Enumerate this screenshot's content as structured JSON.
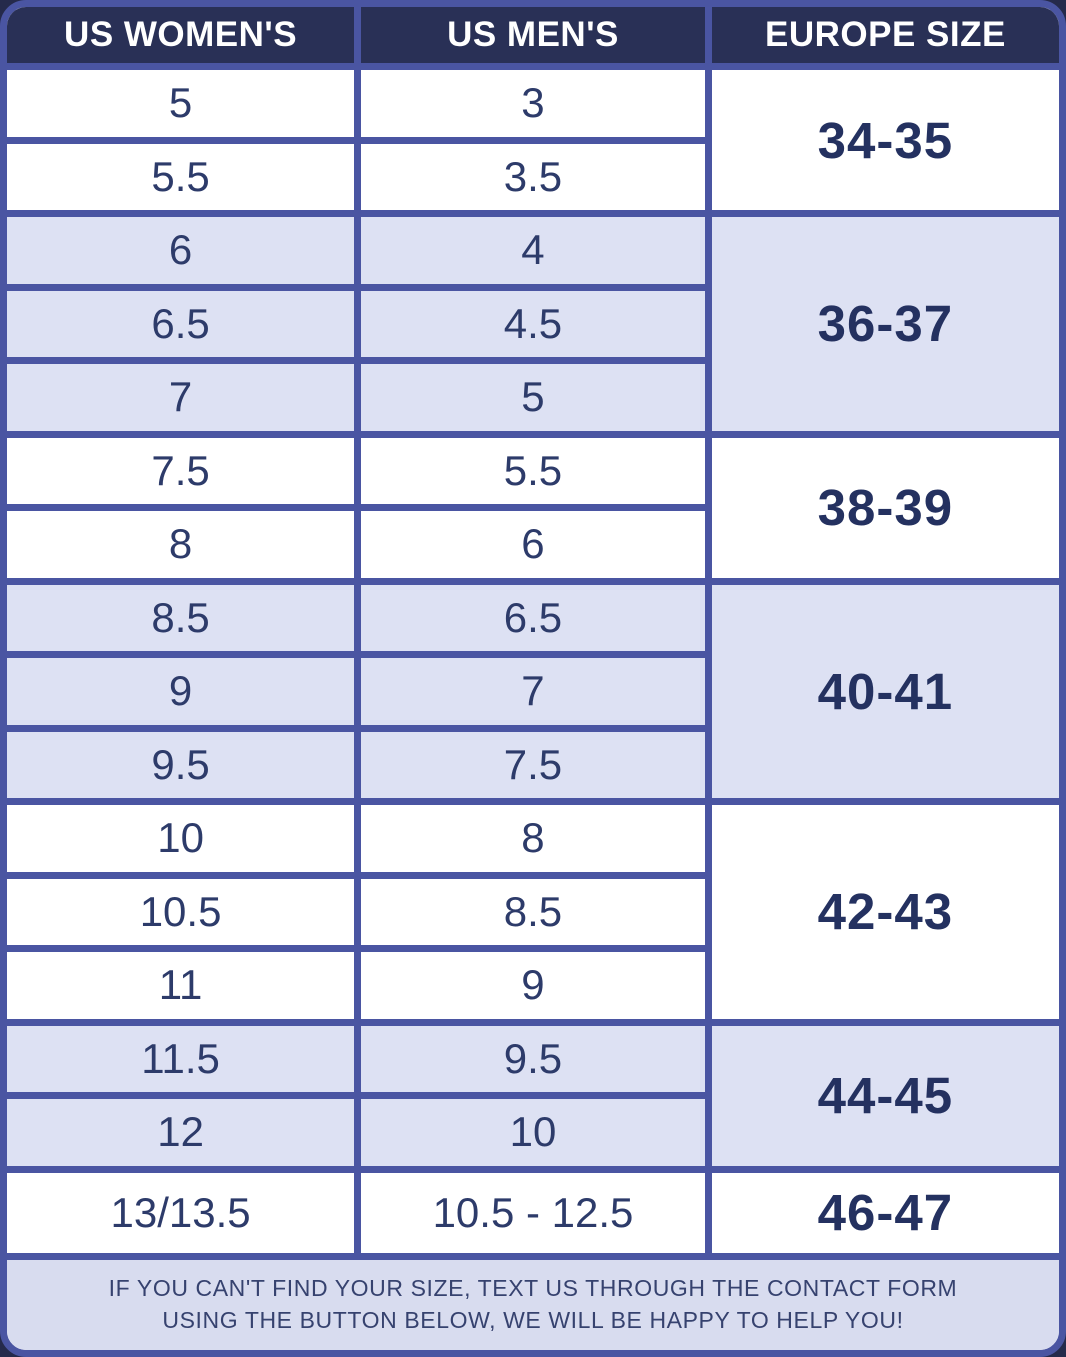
{
  "colors": {
    "page_background": "#252a4b",
    "grid_border": "#4a55a2",
    "header_background": "#293056",
    "header_text": "#ffffff",
    "row_white": "#ffffff",
    "row_shaded": "#dde1f3",
    "cell_text": "#2d3b6a",
    "europe_text": "#243160",
    "footer_background": "#d8dcef",
    "footer_text": "#36426f"
  },
  "table": {
    "columns": [
      "US WOMEN'S",
      "US MEN'S",
      "EUROPE SIZE"
    ],
    "groups": [
      {
        "europe_size": "34-35",
        "shaded": false,
        "rows": [
          {
            "us_womens": "5",
            "us_mens": "3"
          },
          {
            "us_womens": "5.5",
            "us_mens": "3.5"
          }
        ]
      },
      {
        "europe_size": "36-37",
        "shaded": true,
        "rows": [
          {
            "us_womens": "6",
            "us_mens": "4"
          },
          {
            "us_womens": "6.5",
            "us_mens": "4.5"
          },
          {
            "us_womens": "7",
            "us_mens": "5"
          }
        ]
      },
      {
        "europe_size": "38-39",
        "shaded": false,
        "rows": [
          {
            "us_womens": "7.5",
            "us_mens": "5.5"
          },
          {
            "us_womens": "8",
            "us_mens": "6"
          }
        ]
      },
      {
        "europe_size": "40-41",
        "shaded": true,
        "rows": [
          {
            "us_womens": "8.5",
            "us_mens": "6.5"
          },
          {
            "us_womens": "9",
            "us_mens": "7"
          },
          {
            "us_womens": "9.5",
            "us_mens": "7.5"
          }
        ]
      },
      {
        "europe_size": "42-43",
        "shaded": false,
        "rows": [
          {
            "us_womens": "10",
            "us_mens": "8"
          },
          {
            "us_womens": "10.5",
            "us_mens": "8.5"
          },
          {
            "us_womens": "11",
            "us_mens": "9"
          }
        ]
      },
      {
        "europe_size": "44-45",
        "shaded": true,
        "rows": [
          {
            "us_womens": "11.5",
            "us_mens": "9.5"
          },
          {
            "us_womens": "12",
            "us_mens": "10"
          }
        ]
      },
      {
        "europe_size": "46-47",
        "shaded": false,
        "rows": [
          {
            "us_womens": "13/13.5",
            "us_mens": "10.5 - 12.5"
          }
        ]
      }
    ]
  },
  "footer": {
    "lines": [
      "IF YOU CAN'T FIND YOUR SIZE, TEXT US THROUGH THE CONTACT FORM",
      "USING THE BUTTON BELOW, WE WILL BE HAPPY TO HELP YOU!"
    ]
  },
  "chart_data": {
    "type": "table",
    "columns": [
      "US WOMEN'S",
      "US MEN'S",
      "EUROPE SIZE"
    ],
    "rows": [
      [
        "5",
        "3",
        "34-35"
      ],
      [
        "5.5",
        "3.5",
        "34-35"
      ],
      [
        "6",
        "4",
        "36-37"
      ],
      [
        "6.5",
        "4.5",
        "36-37"
      ],
      [
        "7",
        "5",
        "36-37"
      ],
      [
        "7.5",
        "5.5",
        "38-39"
      ],
      [
        "8",
        "6",
        "38-39"
      ],
      [
        "8.5",
        "6.5",
        "40-41"
      ],
      [
        "9",
        "7",
        "40-41"
      ],
      [
        "9.5",
        "7.5",
        "40-41"
      ],
      [
        "10",
        "8",
        "42-43"
      ],
      [
        "10.5",
        "8.5",
        "42-43"
      ],
      [
        "11",
        "9",
        "42-43"
      ],
      [
        "11.5",
        "9.5",
        "44-45"
      ],
      [
        "12",
        "10",
        "44-45"
      ],
      [
        "13/13.5",
        "10.5 - 12.5",
        "46-47"
      ]
    ],
    "notes": "Row groups share a merged Europe-size cell; groups alternate white and lavender backgrounds."
  }
}
